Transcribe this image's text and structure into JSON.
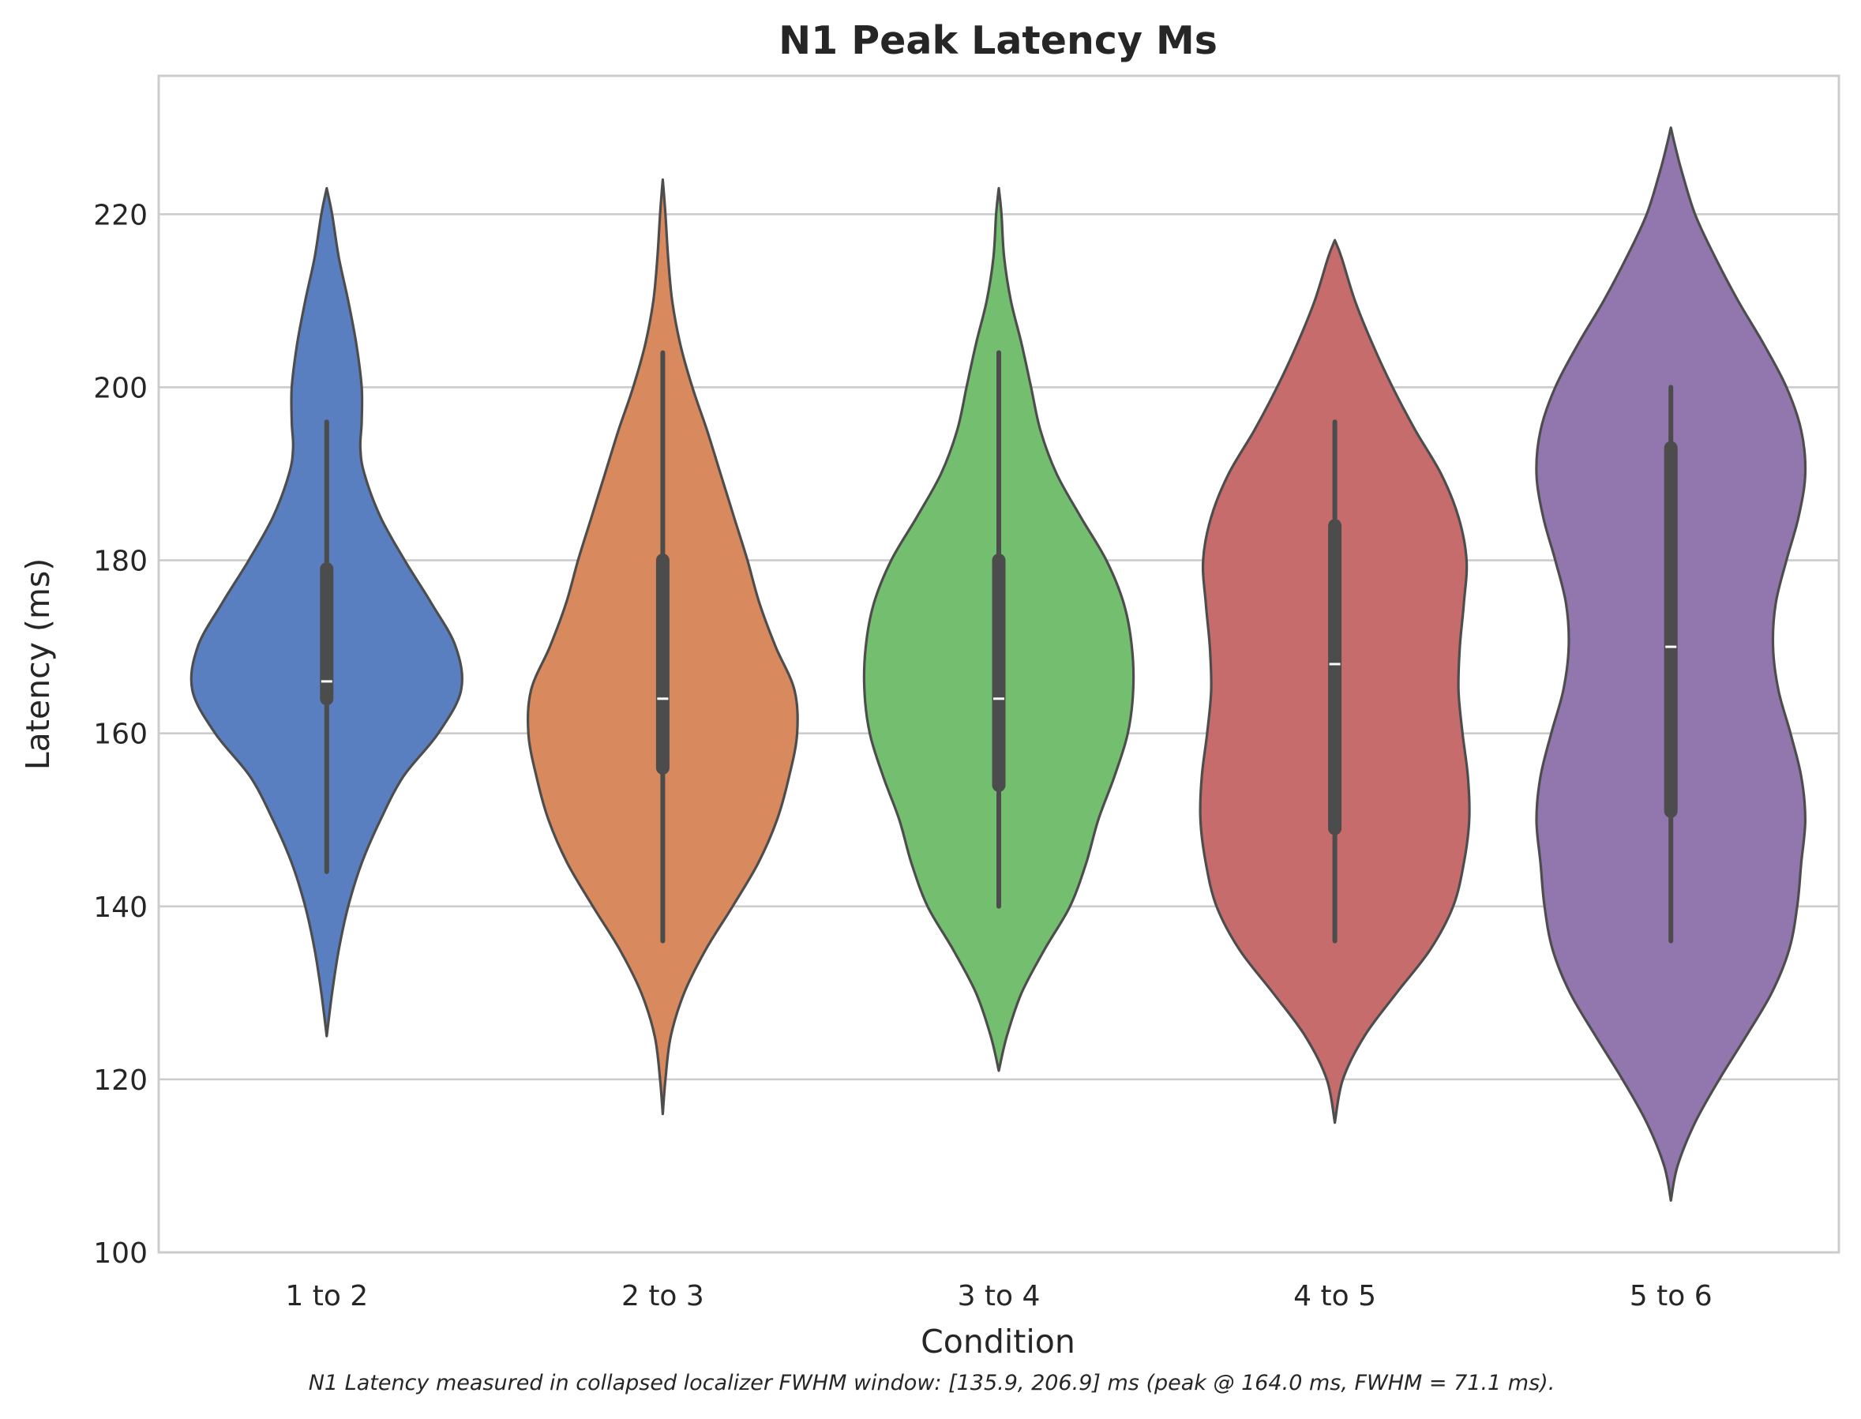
{
  "chart_data": {
    "type": "violin",
    "title": "N1 Peak Latency Ms",
    "xlabel": "Condition",
    "ylabel": "Latency (ms)",
    "ylim": [
      100,
      236
    ],
    "yticks": [
      100,
      120,
      140,
      160,
      180,
      200,
      220
    ],
    "grid": "horizontal",
    "caption": "N1 Latency measured in collapsed localizer FWHM window: [135.9, 206.9] ms (peak @ 164.0 ms, FWHM = 71.1 ms).",
    "colors": {
      "box": "#4c4c4c",
      "median": "#ffffff",
      "outline": "#4d4d4d",
      "grid": "#cccccc"
    },
    "categories": [
      "1 to 2",
      "2 to 3",
      "3 to 4",
      "4 to 5",
      "5 to 6"
    ],
    "series": [
      {
        "color": "#5a7fc1",
        "stats": {
          "min": 144,
          "q1": 164,
          "median": 166,
          "q3": 179,
          "max": 196
        },
        "density": [
          [
            125,
            0
          ],
          [
            130,
            0.04
          ],
          [
            135,
            0.09
          ],
          [
            140,
            0.16
          ],
          [
            145,
            0.26
          ],
          [
            150,
            0.4
          ],
          [
            155,
            0.57
          ],
          [
            160,
            0.83
          ],
          [
            165,
            1.0
          ],
          [
            170,
            0.96
          ],
          [
            175,
            0.78
          ],
          [
            180,
            0.58
          ],
          [
            185,
            0.4
          ],
          [
            190,
            0.28
          ],
          [
            193,
            0.25
          ],
          [
            196,
            0.26
          ],
          [
            200,
            0.26
          ],
          [
            205,
            0.22
          ],
          [
            210,
            0.16
          ],
          [
            215,
            0.09
          ],
          [
            220,
            0.04
          ],
          [
            223,
            0
          ]
        ]
      },
      {
        "color": "#d8895d",
        "stats": {
          "min": 136,
          "q1": 156,
          "median": 164,
          "q3": 180,
          "max": 204
        },
        "density": [
          [
            116,
            0
          ],
          [
            120,
            0.02
          ],
          [
            125,
            0.06
          ],
          [
            130,
            0.16
          ],
          [
            135,
            0.32
          ],
          [
            140,
            0.52
          ],
          [
            145,
            0.71
          ],
          [
            150,
            0.85
          ],
          [
            155,
            0.94
          ],
          [
            160,
            1.0
          ],
          [
            165,
            0.98
          ],
          [
            170,
            0.84
          ],
          [
            175,
            0.72
          ],
          [
            180,
            0.63
          ],
          [
            185,
            0.53
          ],
          [
            190,
            0.43
          ],
          [
            195,
            0.33
          ],
          [
            200,
            0.22
          ],
          [
            205,
            0.13
          ],
          [
            210,
            0.07
          ],
          [
            215,
            0.04
          ],
          [
            220,
            0.02
          ],
          [
            224,
            0
          ]
        ]
      },
      {
        "color": "#74bf6f",
        "stats": {
          "min": 140,
          "q1": 154,
          "median": 164,
          "q3": 180,
          "max": 204
        },
        "density": [
          [
            121,
            0
          ],
          [
            125,
            0.06
          ],
          [
            130,
            0.17
          ],
          [
            135,
            0.34
          ],
          [
            140,
            0.53
          ],
          [
            145,
            0.65
          ],
          [
            150,
            0.74
          ],
          [
            155,
            0.86
          ],
          [
            160,
            0.96
          ],
          [
            165,
            1.0
          ],
          [
            170,
            0.99
          ],
          [
            175,
            0.93
          ],
          [
            180,
            0.8
          ],
          [
            185,
            0.61
          ],
          [
            190,
            0.43
          ],
          [
            195,
            0.31
          ],
          [
            200,
            0.24
          ],
          [
            205,
            0.17
          ],
          [
            210,
            0.09
          ],
          [
            215,
            0.04
          ],
          [
            220,
            0.02
          ],
          [
            223,
            0
          ]
        ]
      },
      {
        "color": "#c66c6c",
        "stats": {
          "min": 136,
          "q1": 149,
          "median": 168,
          "q3": 184,
          "max": 196
        },
        "density": [
          [
            115,
            0
          ],
          [
            120,
            0.06
          ],
          [
            125,
            0.22
          ],
          [
            130,
            0.46
          ],
          [
            135,
            0.71
          ],
          [
            140,
            0.88
          ],
          [
            145,
            0.96
          ],
          [
            150,
            1.0
          ],
          [
            155,
            0.99
          ],
          [
            160,
            0.95
          ],
          [
            165,
            0.92
          ],
          [
            170,
            0.93
          ],
          [
            175,
            0.96
          ],
          [
            180,
            0.98
          ],
          [
            185,
            0.92
          ],
          [
            190,
            0.79
          ],
          [
            195,
            0.6
          ],
          [
            200,
            0.43
          ],
          [
            205,
            0.28
          ],
          [
            210,
            0.15
          ],
          [
            215,
            0.05
          ],
          [
            217,
            0
          ]
        ]
      },
      {
        "color": "#9276ae",
        "stats": {
          "min": 136,
          "q1": 151,
          "median": 170,
          "q3": 193,
          "max": 200
        },
        "density": [
          [
            106,
            0
          ],
          [
            110,
            0.05
          ],
          [
            115,
            0.18
          ],
          [
            120,
            0.36
          ],
          [
            125,
            0.56
          ],
          [
            130,
            0.75
          ],
          [
            135,
            0.88
          ],
          [
            140,
            0.94
          ],
          [
            145,
            0.97
          ],
          [
            150,
            1.0
          ],
          [
            155,
            0.97
          ],
          [
            160,
            0.89
          ],
          [
            165,
            0.8
          ],
          [
            170,
            0.76
          ],
          [
            175,
            0.78
          ],
          [
            180,
            0.86
          ],
          [
            185,
            0.95
          ],
          [
            190,
            1.0
          ],
          [
            195,
            0.97
          ],
          [
            200,
            0.86
          ],
          [
            205,
            0.69
          ],
          [
            210,
            0.5
          ],
          [
            215,
            0.33
          ],
          [
            220,
            0.18
          ],
          [
            225,
            0.08
          ],
          [
            228,
            0.03
          ],
          [
            230,
            0
          ]
        ]
      }
    ]
  }
}
